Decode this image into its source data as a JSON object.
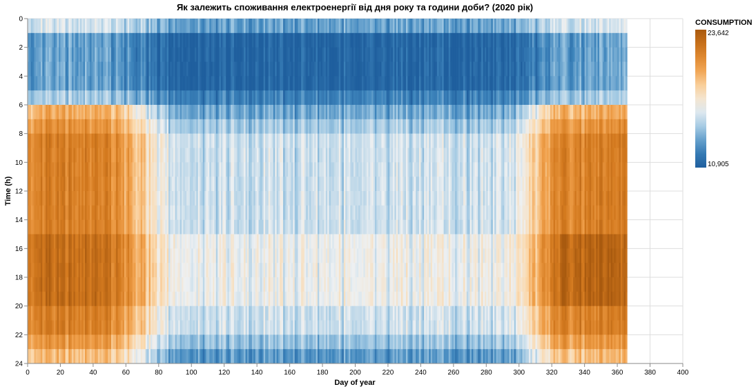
{
  "chart_data": {
    "type": "heatmap",
    "title": "Як залежить споживання електроенергії від дня року та години доби? (2020 рік)",
    "xlabel": "Day of year",
    "ylabel": "Time (h)",
    "xlim": [
      0,
      400
    ],
    "ylim": [
      0,
      24
    ],
    "x_ticks": [
      "0",
      "20",
      "40",
      "60",
      "80",
      "100",
      "120",
      "140",
      "160",
      "180",
      "200",
      "220",
      "240",
      "260",
      "280",
      "300",
      "320",
      "340",
      "360",
      "380",
      "400"
    ],
    "y_ticks": [
      "0",
      "2",
      "4",
      "6",
      "8",
      "10",
      "12",
      "14",
      "16",
      "18",
      "20",
      "22",
      "24"
    ],
    "days": [
      1,
      366
    ],
    "hours": [
      0,
      23
    ],
    "color_scale": {
      "field": "CONSUMPTION",
      "min": 10905,
      "max": 23642,
      "min_label": "10,905",
      "max_label": "23,642",
      "scheme": [
        "#2166ac",
        "#4393c3",
        "#92c5de",
        "#d1e5f0",
        "#f7f7f7",
        "#fddbc7",
        "#f4a582",
        "#d6604d",
        "#b2182b"
      ],
      "palette": [
        "#1f5f9e",
        "#3f86bd",
        "#9ec7e2",
        "#edf0f2",
        "#fbd9ad",
        "#f0a04b",
        "#d47a1f",
        "#a95a0f"
      ]
    },
    "legend": {
      "title": "CONSUMPTION",
      "position": "right"
    },
    "grid": true
  }
}
